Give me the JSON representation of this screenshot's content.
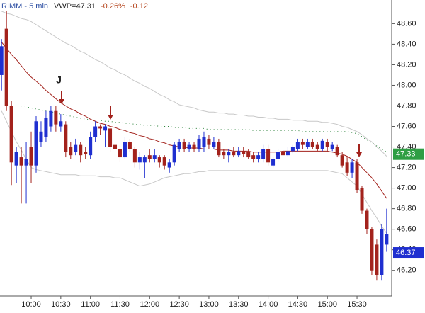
{
  "chart_data": {
    "type": "candlestick",
    "title": "RIMM - 5 min",
    "header_stats": [
      {
        "text": "VWP=47.31",
        "color": "#222222"
      },
      {
        "text": "-0.26%",
        "color": "#b5461e"
      },
      {
        "text": "-0.12",
        "color": "#b5461e"
      }
    ],
    "annotations": [
      "J"
    ],
    "categories": [
      null,
      null,
      null,
      null,
      null,
      null,
      "10:00",
      null,
      null,
      null,
      null,
      null,
      "10:30",
      null,
      null,
      null,
      null,
      null,
      "11:00",
      null,
      null,
      null,
      null,
      null,
      "11:30",
      null,
      null,
      null,
      null,
      null,
      "12:00",
      null,
      null,
      null,
      null,
      null,
      "12:30",
      null,
      null,
      null,
      null,
      null,
      "13:00",
      null,
      null,
      null,
      null,
      null,
      "13:30",
      null,
      null,
      null,
      null,
      null,
      "14:00",
      null,
      null,
      null,
      null,
      null,
      "14:30",
      null,
      null,
      null,
      null,
      null,
      "15:00",
      null,
      null,
      null,
      null,
      null,
      "15:30",
      null,
      null,
      null,
      null,
      null,
      null
    ],
    "up_color": "#1f2fd0",
    "down_color": "#a3221c",
    "open": [
      48.1,
      48.55,
      47.8,
      47.22,
      47.3,
      47.22,
      47.4,
      47.22,
      47.45,
      47.5,
      47.6,
      47.75,
      47.6,
      47.62,
      47.4,
      47.35,
      47.42,
      47.35,
      47.32,
      47.5,
      47.6,
      47.56,
      47.58,
      47.42,
      47.38,
      47.3,
      47.45,
      47.38,
      47.25,
      47.25,
      47.32,
      47.28,
      47.3,
      47.3,
      47.2,
      47.25,
      47.38,
      47.45,
      47.38,
      47.42,
      47.38,
      47.4,
      47.48,
      47.4,
      47.45,
      47.35,
      47.32,
      47.35,
      47.32,
      47.36,
      47.35,
      47.32,
      47.28,
      47.28,
      47.38,
      47.22,
      47.28,
      47.35,
      47.32,
      47.36,
      47.38,
      47.45,
      47.4,
      47.45,
      47.42,
      47.38,
      47.45,
      47.38,
      47.4,
      47.32,
      47.25,
      47.15,
      47.25,
      47.0,
      46.78,
      46.6,
      46.45,
      46.15,
      46.45
    ],
    "high": [
      48.45,
      48.72,
      47.85,
      47.4,
      47.4,
      47.45,
      47.55,
      47.7,
      47.65,
      47.75,
      47.8,
      47.8,
      47.72,
      47.65,
      47.45,
      47.48,
      47.45,
      47.4,
      47.55,
      47.65,
      47.62,
      47.62,
      47.6,
      47.48,
      47.42,
      47.5,
      47.48,
      47.4,
      47.35,
      47.32,
      47.38,
      47.38,
      47.32,
      47.32,
      47.28,
      47.45,
      47.48,
      47.48,
      47.45,
      47.45,
      47.52,
      47.55,
      47.52,
      47.5,
      47.48,
      47.38,
      47.38,
      47.4,
      47.4,
      47.4,
      47.38,
      47.35,
      47.35,
      47.42,
      47.42,
      47.3,
      47.38,
      47.4,
      47.4,
      47.42,
      47.48,
      47.48,
      47.48,
      47.48,
      47.45,
      47.48,
      47.48,
      47.45,
      47.42,
      47.35,
      47.3,
      47.28,
      47.28,
      47.02,
      46.8,
      46.62,
      46.5,
      46.65,
      46.8
    ],
    "low": [
      47.95,
      47.75,
      47.03,
      47.05,
      46.85,
      46.85,
      47.05,
      47.15,
      47.4,
      47.45,
      47.55,
      47.55,
      47.55,
      47.3,
      47.28,
      47.32,
      47.25,
      47.28,
      47.28,
      47.45,
      47.52,
      47.4,
      47.35,
      47.35,
      47.25,
      47.28,
      47.35,
      47.2,
      47.18,
      47.1,
      47.25,
      47.25,
      47.2,
      47.18,
      47.15,
      47.22,
      47.35,
      47.35,
      47.35,
      47.35,
      47.35,
      47.35,
      47.38,
      47.38,
      47.3,
      47.28,
      47.25,
      47.3,
      47.3,
      47.3,
      47.28,
      47.25,
      47.25,
      47.25,
      47.22,
      47.2,
      47.25,
      47.28,
      47.3,
      47.34,
      47.36,
      47.38,
      47.38,
      47.38,
      47.36,
      47.36,
      47.36,
      47.36,
      47.3,
      47.2,
      47.12,
      47.1,
      46.95,
      46.75,
      46.55,
      46.15,
      46.1,
      46.1,
      46.38
    ],
    "close": [
      48.38,
      47.8,
      47.25,
      47.35,
      47.22,
      47.28,
      47.22,
      47.65,
      47.55,
      47.68,
      47.75,
      47.62,
      47.65,
      47.35,
      47.32,
      47.42,
      47.32,
      47.33,
      47.5,
      47.6,
      47.58,
      47.6,
      47.4,
      47.38,
      47.3,
      47.45,
      47.38,
      47.25,
      47.3,
      47.3,
      47.28,
      47.32,
      47.25,
      47.22,
      47.25,
      47.42,
      47.45,
      47.38,
      47.42,
      47.38,
      47.48,
      47.5,
      47.42,
      47.45,
      47.32,
      47.32,
      47.35,
      47.32,
      47.36,
      47.33,
      47.3,
      47.28,
      47.32,
      47.38,
      47.25,
      47.28,
      47.35,
      47.32,
      47.36,
      47.4,
      47.45,
      47.42,
      47.45,
      47.4,
      47.38,
      47.46,
      47.4,
      47.42,
      47.32,
      47.22,
      47.15,
      47.25,
      46.98,
      46.78,
      46.6,
      46.2,
      46.15,
      46.6,
      46.55
    ],
    "overlays": [
      {
        "color": "#c8c8c8",
        "dash": "none",
        "values": [
          48.72,
          48.7,
          48.69,
          48.67,
          48.65,
          48.64,
          48.62,
          48.59,
          48.56,
          48.53,
          48.5,
          48.47,
          48.44,
          48.41,
          48.39,
          48.36,
          48.33,
          48.31,
          48.28,
          48.25,
          48.23,
          48.2,
          48.17,
          48.15,
          48.12,
          48.1,
          48.07,
          48.04,
          48.02,
          47.99,
          47.97,
          47.94,
          47.91,
          47.89,
          47.86,
          47.84,
          47.81,
          47.8,
          47.79,
          47.78,
          47.76,
          47.75,
          47.74,
          47.74,
          47.73,
          47.73,
          47.72,
          47.72,
          47.71,
          47.71,
          47.7,
          47.7,
          47.69,
          47.69,
          47.68,
          47.68,
          47.67,
          47.67,
          47.67,
          47.66,
          47.66,
          47.66,
          47.65,
          47.65,
          47.65,
          47.64,
          47.64,
          47.63,
          47.62,
          47.6,
          47.59,
          47.57,
          47.55,
          47.52,
          47.48,
          47.45,
          47.4,
          47.36,
          47.31
        ]
      },
      {
        "color": "#c8c8c8",
        "dash": "none",
        "values": [
          47.75,
          47.65,
          47.55,
          47.45,
          47.37,
          47.28,
          47.2,
          47.18,
          47.17,
          47.16,
          47.15,
          47.14,
          47.13,
          47.13,
          47.13,
          47.13,
          47.12,
          47.12,
          47.12,
          47.12,
          47.11,
          47.11,
          47.11,
          47.1,
          47.1,
          47.08,
          47.06,
          47.04,
          47.02,
          47.03,
          47.04,
          47.06,
          47.08,
          47.1,
          47.11,
          47.12,
          47.13,
          47.14,
          47.14,
          47.15,
          47.16,
          47.16,
          47.17,
          47.17,
          47.17,
          47.17,
          47.17,
          47.17,
          47.17,
          47.17,
          47.17,
          47.17,
          47.17,
          47.17,
          47.17,
          47.17,
          47.17,
          47.17,
          47.17,
          47.17,
          47.17,
          47.17,
          47.17,
          47.17,
          47.17,
          47.17,
          47.17,
          47.16,
          47.15,
          47.14,
          47.1,
          47.06,
          47.02,
          46.94,
          46.86,
          46.78,
          46.71,
          46.63,
          46.56
        ]
      },
      {
        "color": "#1e7a2e",
        "dash": "1 4",
        "values": [
          null,
          null,
          null,
          null,
          47.8,
          47.79,
          47.78,
          47.77,
          47.76,
          47.75,
          47.74,
          47.73,
          47.72,
          47.71,
          47.7,
          47.69,
          47.68,
          47.67,
          47.67,
          47.66,
          47.66,
          47.65,
          47.65,
          47.64,
          47.64,
          47.63,
          47.63,
          47.62,
          47.62,
          47.61,
          47.61,
          47.61,
          47.6,
          47.6,
          47.6,
          47.59,
          47.59,
          47.59,
          47.58,
          47.58,
          47.58,
          47.58,
          47.57,
          47.57,
          47.57,
          47.57,
          47.57,
          47.57,
          47.57,
          47.57,
          47.57,
          47.56,
          47.56,
          47.56,
          47.56,
          47.56,
          47.56,
          47.56,
          47.56,
          47.56,
          47.56,
          47.55,
          47.55,
          47.55,
          47.55,
          47.55,
          47.55,
          47.55,
          47.55,
          47.55,
          47.55,
          47.54,
          47.53,
          47.5,
          47.47,
          47.44,
          47.41,
          47.38,
          47.35
        ]
      },
      {
        "color": "#a3221c",
        "dash": "none",
        "values": [
          48.42,
          48.36,
          48.3,
          48.25,
          48.19,
          48.13,
          48.08,
          48.04,
          48.0,
          47.95,
          47.91,
          47.87,
          47.83,
          47.8,
          47.77,
          47.75,
          47.72,
          47.7,
          47.67,
          47.65,
          47.63,
          47.62,
          47.6,
          47.59,
          47.57,
          47.56,
          47.54,
          47.53,
          47.51,
          47.5,
          47.48,
          47.47,
          47.45,
          47.44,
          47.42,
          47.41,
          47.4,
          47.4,
          47.39,
          47.39,
          47.39,
          47.38,
          47.38,
          47.38,
          47.37,
          47.37,
          47.37,
          47.36,
          47.36,
          47.36,
          47.36,
          47.35,
          47.35,
          47.35,
          47.35,
          47.35,
          47.35,
          47.36,
          47.36,
          47.36,
          47.36,
          47.36,
          47.36,
          47.36,
          47.36,
          47.36,
          47.36,
          47.35,
          47.34,
          47.33,
          47.31,
          47.28,
          47.25,
          47.2,
          47.15,
          47.1,
          47.04,
          46.97,
          46.9
        ]
      }
    ],
    "price_markers": [
      {
        "value": 47.33,
        "color": "#2f9e44",
        "text_color": "#ffffff"
      },
      {
        "value": 46.37,
        "color": "#1f2fd0",
        "text_color": "#ffffff"
      }
    ],
    "ylim": [
      45.95,
      48.83
    ],
    "yticks": [
      {
        "value": 46.2,
        "label": "46.20"
      },
      {
        "value": 46.4,
        "label": "46.40"
      },
      {
        "value": 46.6,
        "label": "46.60"
      },
      {
        "value": 46.8,
        "label": "46.80"
      },
      {
        "value": 47.0,
        "label": "47.00"
      },
      {
        "value": 47.2,
        "label": "47.20"
      },
      {
        "value": 47.4,
        "label": "47.40"
      },
      {
        "value": 47.6,
        "label": "47.60"
      },
      {
        "value": 47.8,
        "label": "47.80"
      },
      {
        "value": 48.0,
        "label": "48.00"
      },
      {
        "value": 48.2,
        "label": "48.20"
      },
      {
        "value": 48.4,
        "label": "48.40"
      },
      {
        "value": 48.6,
        "label": "48.60"
      }
    ],
    "grid": false
  }
}
